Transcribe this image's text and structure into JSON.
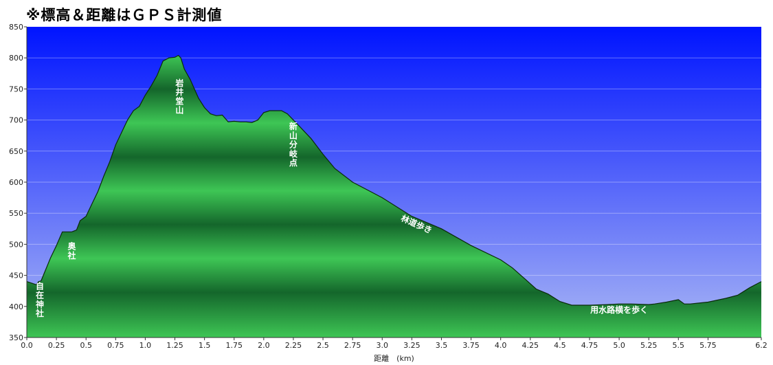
{
  "header": {
    "note": "※標高＆距離はＧＰＳ計測値"
  },
  "chart_data": {
    "type": "area",
    "title": "",
    "xlabel": "距離　(km)",
    "ylabel": "",
    "xlim": [
      0,
      6.2
    ],
    "ylim": [
      350,
      850
    ],
    "grid": true,
    "legend": "none",
    "x_ticks": [
      0,
      0.25,
      0.5,
      0.75,
      1.0,
      1.25,
      1.5,
      1.75,
      2.0,
      2.25,
      2.5,
      2.75,
      3.0,
      3.25,
      3.5,
      3.75,
      4.0,
      4.25,
      4.5,
      4.75,
      5.0,
      5.25,
      5.5,
      5.75,
      6.2
    ],
    "x_tick_labels": [
      "0.0",
      "0.25",
      "0.5",
      "0.75",
      "1.0",
      "1.25",
      "1.5",
      "1.75",
      "2.0",
      "2.25",
      "2.5",
      "2.75",
      "3.0",
      "3.25",
      "3.5",
      "3.75",
      "4.0",
      "4.25",
      "4.5",
      "4.75",
      "5.0",
      "5.25",
      "5.5",
      "5.75",
      "6.2"
    ],
    "y_ticks": [
      350,
      400,
      450,
      500,
      550,
      600,
      650,
      700,
      750,
      800,
      850
    ],
    "colors": {
      "sky_top": "#0014ff",
      "sky_bottom": "#aab7f5",
      "terrain_light": "#3ec655",
      "terrain_dark": "#14662b",
      "outline": "#0a2a0a"
    },
    "series": [
      {
        "x": [
          0,
          0.05,
          0.08,
          0.1,
          0.12,
          0.15,
          0.2,
          0.25,
          0.3,
          0.33,
          0.38,
          0.42,
          0.45,
          0.5,
          0.55,
          0.6,
          0.65,
          0.7,
          0.75,
          0.8,
          0.85,
          0.9,
          0.95,
          1.0,
          1.05,
          1.1,
          1.15,
          1.2,
          1.25,
          1.28,
          1.3,
          1.33,
          1.38,
          1.45,
          1.5,
          1.55,
          1.6,
          1.65,
          1.7,
          1.75,
          1.8,
          1.85,
          1.9,
          1.95,
          2.0,
          2.05,
          2.1,
          2.15,
          2.2,
          2.25,
          2.3,
          2.4,
          2.5,
          2.6,
          2.75,
          3.0,
          3.25,
          3.5,
          3.75,
          4.0,
          4.1,
          4.2,
          4.3,
          4.4,
          4.5,
          4.6,
          4.75,
          4.9,
          5.0,
          5.1,
          5.25,
          5.3,
          5.4,
          5.5,
          5.55,
          5.6,
          5.75,
          5.9,
          6.0,
          6.1,
          6.2
        ],
        "values": [
          440,
          437,
          435,
          440,
          441,
          455,
          478,
          498,
          520,
          520,
          520,
          523,
          538,
          545,
          565,
          585,
          610,
          633,
          660,
          680,
          700,
          715,
          722,
          740,
          755,
          772,
          795,
          800,
          801,
          804,
          800,
          782,
          765,
          735,
          720,
          710,
          707,
          708,
          697,
          698,
          697,
          697,
          696,
          700,
          712,
          715,
          715,
          715,
          710,
          700,
          690,
          670,
          645,
          622,
          600,
          575,
          545,
          525,
          498,
          475,
          462,
          445,
          428,
          420,
          408,
          402,
          402,
          403,
          404,
          404,
          403,
          404,
          407,
          411,
          404,
          404,
          407,
          413,
          418,
          430,
          440
        ]
      }
    ],
    "annotations": [
      {
        "label": "自在神社",
        "x": 0.11,
        "y": 428,
        "orientation": "vertical"
      },
      {
        "label": "奥社",
        "x": 0.38,
        "y": 492,
        "orientation": "vertical"
      },
      {
        "label": "岩井堂山",
        "x": 1.29,
        "y": 755,
        "orientation": "vertical"
      },
      {
        "label": "新山分岐点",
        "x": 2.25,
        "y": 685,
        "orientation": "vertical"
      },
      {
        "label": "林道歩き",
        "x": 3.28,
        "y": 528,
        "orientation": "rotated"
      },
      {
        "label": "用水路横を歩く",
        "x": 5.0,
        "y": 390,
        "orientation": "horizontal"
      }
    ]
  }
}
